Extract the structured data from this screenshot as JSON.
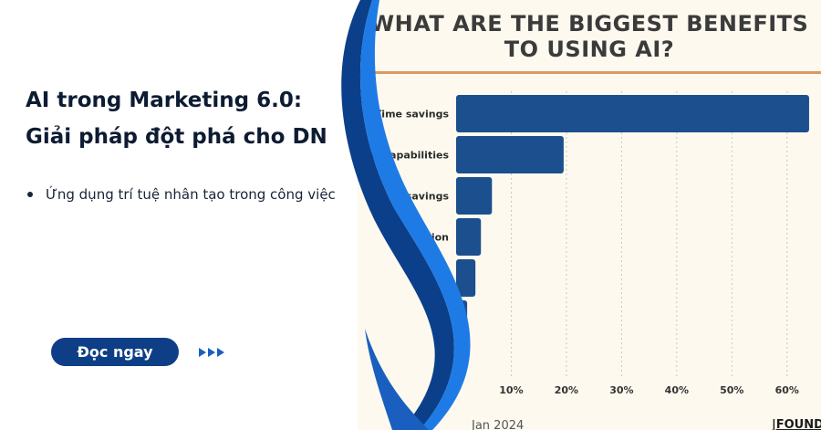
{
  "left": {
    "headline_line1": "AI trong Marketing 6.0:",
    "headline_line2": "Giải pháp đột phá cho DN",
    "bullet": "Ứng dụng trí tuệ nhân tạo trong công việc",
    "cta_label": "Đọc ngay",
    "arrows_icon": "triple-play-arrows-icon"
  },
  "chart_data": {
    "type": "bar",
    "orientation": "horizontal",
    "title_line1": "WHAT ARE THE BIGGEST BENEFITS",
    "title_line2": "TO USING AI?",
    "categories": [
      "Time savings",
      "New capabilities",
      "Cost savings",
      "Automation",
      "",
      ""
    ],
    "category_labels_visible": [
      "Time savings",
      "ew capabilities",
      "st savings",
      "ation",
      "",
      ""
    ],
    "values": [
      64,
      19.5,
      6.5,
      4.5,
      3.5,
      2
    ],
    "xlim": [
      0,
      65
    ],
    "xticks": [
      10,
      20,
      30,
      40,
      50,
      60
    ],
    "xtick_labels": [
      "10%",
      "20%",
      "30%",
      "40%",
      "50%",
      "60%"
    ],
    "grid": "vertical-dotted",
    "bar_color": "#1c4f8e",
    "source": "Jan 2024",
    "brand": "|FOUNDA"
  },
  "colors": {
    "panel_bg": "#fdf9ef",
    "rule": "#d79a62",
    "swoosh_dark": "#0b3f8a",
    "swoosh_light": "#1e7be6"
  }
}
